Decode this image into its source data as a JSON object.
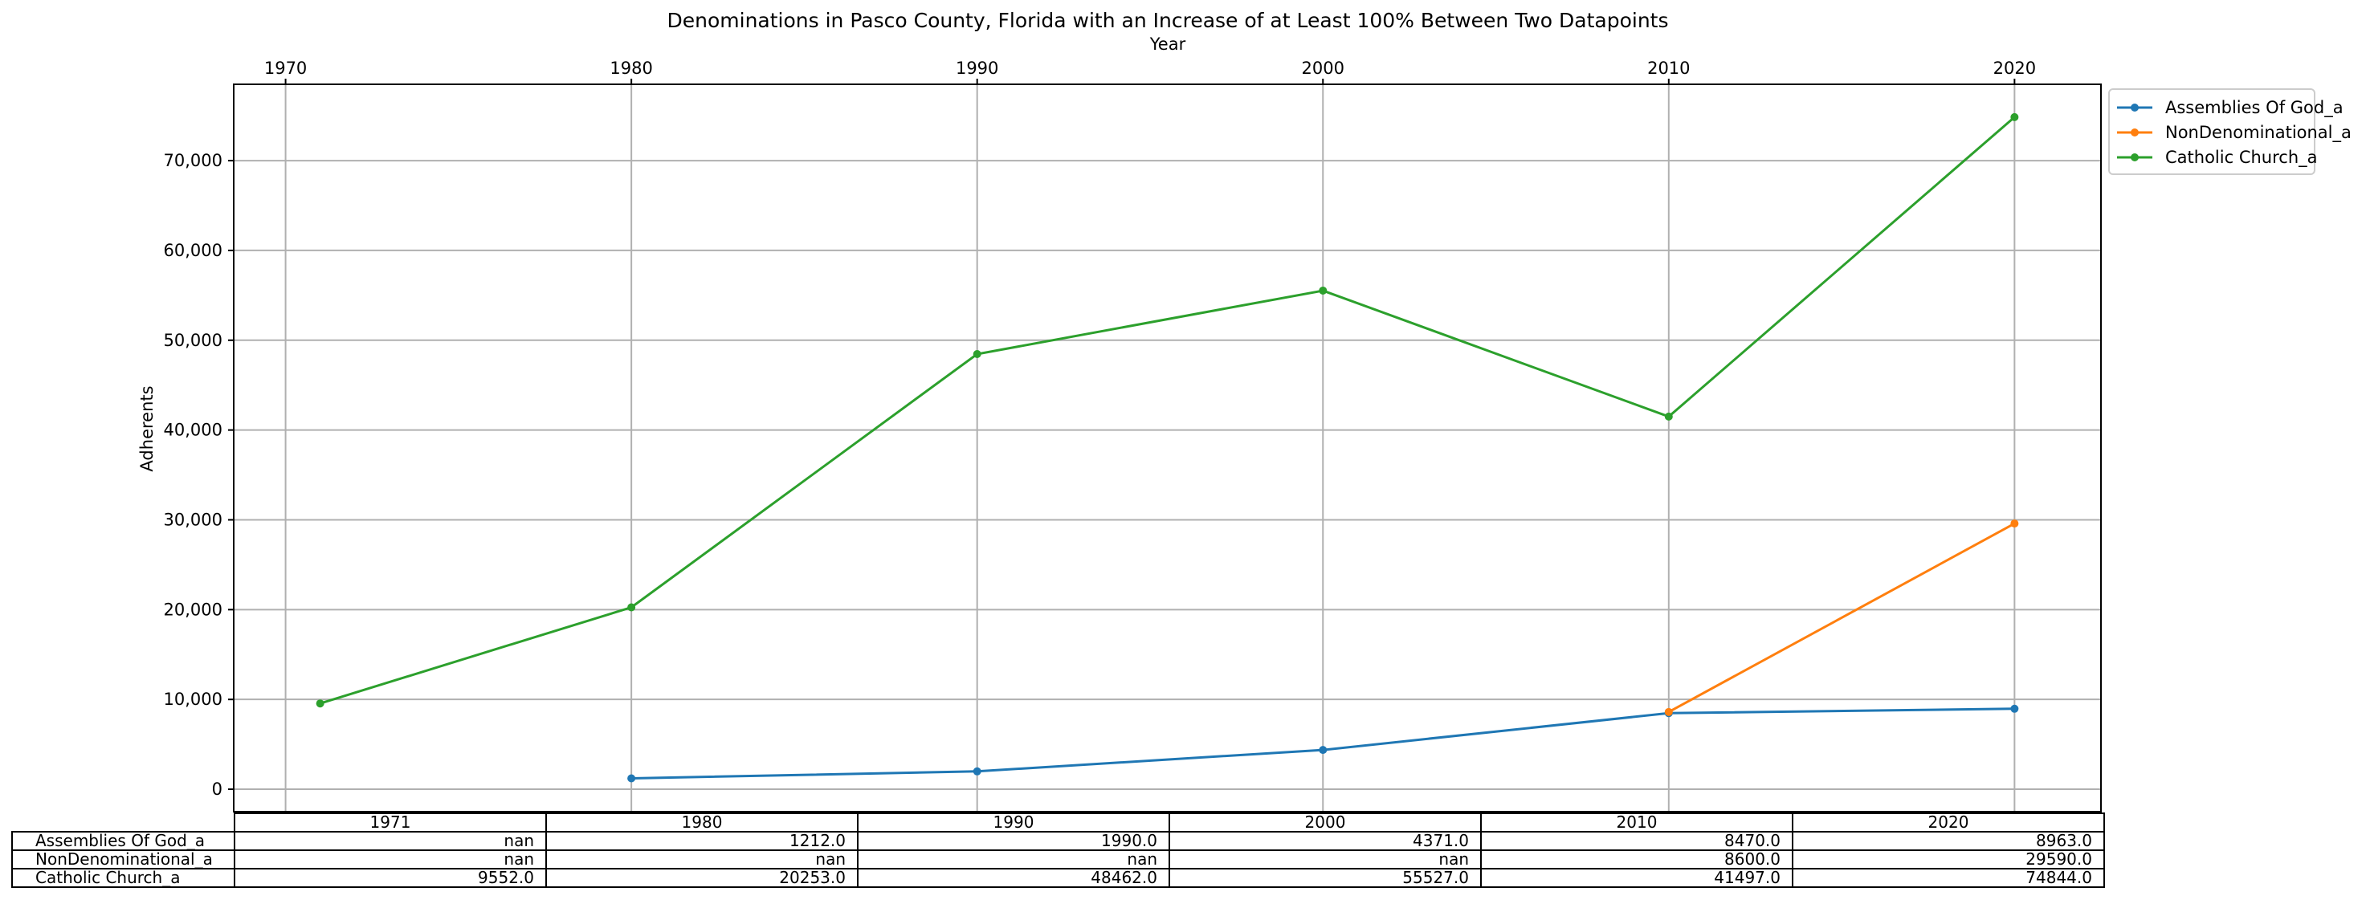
{
  "chart_data": {
    "type": "line",
    "title": "Denominations in Pasco County, Florida with an Increase of at Least 100% Between Two Datapoints",
    "xlabel": "Year",
    "ylabel": "Adherents",
    "x_ticks": [
      1970,
      1980,
      1990,
      2000,
      2010,
      2020
    ],
    "x_tick_labels": [
      "1970",
      "1980",
      "1990",
      "2000",
      "2010",
      "2020"
    ],
    "xlim": [
      1968.5,
      2022.5
    ],
    "y_ticks": [
      0,
      10000,
      20000,
      30000,
      40000,
      50000,
      60000,
      70000
    ],
    "y_tick_labels": [
      "0",
      "10,000",
      "20,000",
      "30,000",
      "40,000",
      "50,000",
      "60,000",
      "70,000"
    ],
    "ylim": [
      -2500,
      78500
    ],
    "grid": true,
    "legend_position": "outside-top-right",
    "x": [
      1971,
      1980,
      1990,
      2000,
      2010,
      2020
    ],
    "series": [
      {
        "name": "Assemblies Of God_a",
        "color": "#1f77b4",
        "values": [
          null,
          1212,
          1990,
          4371,
          8470,
          8963
        ]
      },
      {
        "name": "NonDenominational_a",
        "color": "#ff7f0e",
        "values": [
          null,
          null,
          null,
          null,
          8600,
          29590
        ]
      },
      {
        "name": "Catholic Church_a",
        "color": "#2ca02c",
        "values": [
          9552,
          20253,
          48462,
          55527,
          41497,
          74844
        ]
      }
    ],
    "table": {
      "columns": [
        "1971",
        "1980",
        "1990",
        "2000",
        "2010",
        "2020"
      ],
      "rows": [
        {
          "label": "Assemblies Of God_a",
          "cells": [
            "nan",
            "1212.0",
            "1990.0",
            "4371.0",
            "8470.0",
            "8963.0"
          ]
        },
        {
          "label": "NonDenominational_a",
          "cells": [
            "nan",
            "nan",
            "nan",
            "nan",
            "8600.0",
            "29590.0"
          ]
        },
        {
          "label": "Catholic Church_a",
          "cells": [
            "9552.0",
            "20253.0",
            "48462.0",
            "55527.0",
            "41497.0",
            "74844.0"
          ]
        }
      ]
    }
  }
}
